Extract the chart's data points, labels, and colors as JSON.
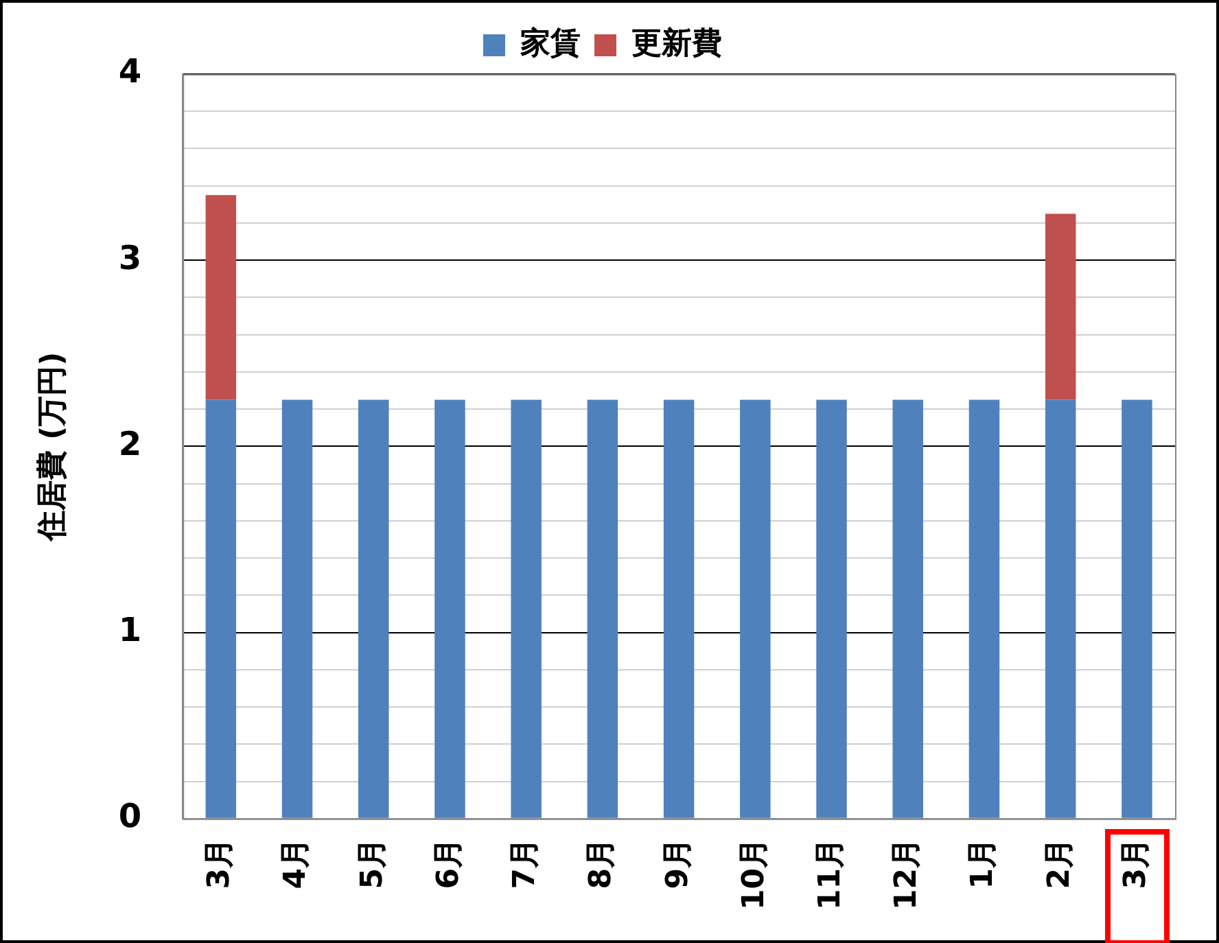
{
  "chart_data": {
    "type": "bar",
    "stacked": true,
    "ylabel": "住居費 (万円)",
    "categories": [
      "3月",
      "4月",
      "5月",
      "6月",
      "7月",
      "8月",
      "9月",
      "10月",
      "11月",
      "12月",
      "1月",
      "2月",
      "3月"
    ],
    "series": [
      {
        "name": "家賃",
        "color": "#4f81bd",
        "values": [
          2.25,
          2.25,
          2.25,
          2.25,
          2.25,
          2.25,
          2.25,
          2.25,
          2.25,
          2.25,
          2.25,
          2.25,
          2.25
        ]
      },
      {
        "name": "更新費",
        "color": "#c0504d",
        "values": [
          1.1,
          null,
          null,
          null,
          null,
          null,
          null,
          null,
          null,
          null,
          null,
          1.0,
          null
        ]
      }
    ],
    "ylim": [
      0,
      4
    ],
    "yticks": [
      0,
      {
        "value": 0.2,
        "label": null
      },
      {
        "value": 0.4,
        "label": null
      },
      {
        "value": 0.6,
        "label": null
      },
      {
        "value": 0.8,
        "label": null
      },
      1,
      {
        "value": 1.2,
        "label": null
      },
      {
        "value": 1.4,
        "label": null
      },
      {
        "value": 1.6,
        "label": null
      },
      {
        "value": 1.8,
        "label": null
      },
      2,
      {
        "value": 2.2,
        "label": null
      },
      {
        "value": 2.4,
        "label": null
      },
      {
        "value": 2.6,
        "label": null
      },
      {
        "value": 2.8,
        "label": null
      },
      3,
      {
        "value": 3.2,
        "label": null
      },
      {
        "value": 3.4,
        "label": null
      },
      {
        "value": 3.6,
        "label": null
      },
      {
        "value": 3.8,
        "label": null
      },
      4
    ],
    "grid": "y",
    "legend": "top"
  }
}
